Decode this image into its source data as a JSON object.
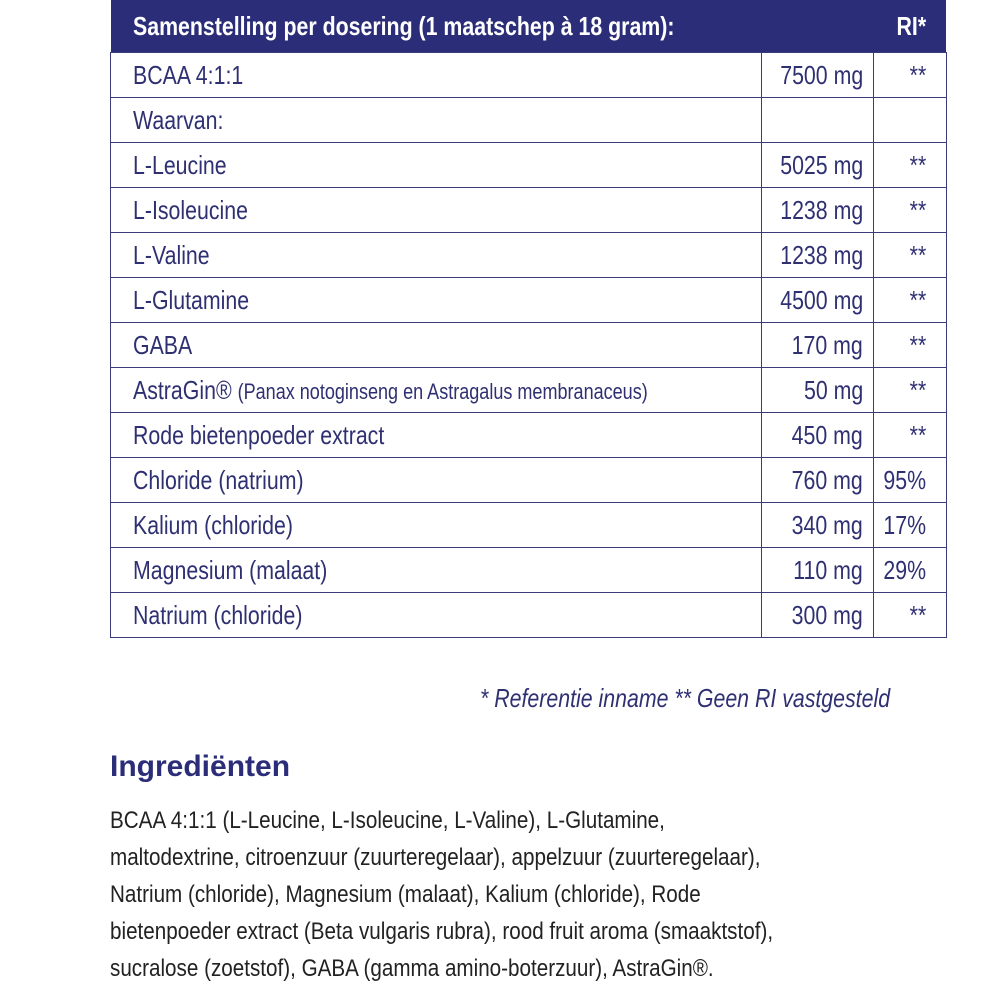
{
  "table": {
    "header": [
      "Samenstelling per dosering (1 maatschep à 18 gram):",
      "RI*"
    ],
    "rows": [
      {
        "name": "BCAA 4:1:1",
        "amount": "7500 mg",
        "ri": "**"
      },
      {
        "name": "Waarvan:",
        "amount": null,
        "ri": null,
        "level": 1
      },
      {
        "name": "L-Leucine",
        "amount": "5025 mg",
        "ri": "**",
        "level": 1
      },
      {
        "name": "L-Isoleucine",
        "amount": "1238 mg",
        "ri": "**",
        "level": 1
      },
      {
        "name": "L-Valine",
        "amount": "1238 mg",
        "ri": "**",
        "level": 1
      },
      {
        "name": "L-Glutamine",
        "amount": "4500 mg",
        "ri": "**"
      },
      {
        "name": "GABA",
        "amount": "170 mg",
        "ri": "**"
      },
      {
        "name": "AstraGin®",
        "note": "(Panax notoginseng en Astragalus membranaceus)",
        "amount": "50 mg",
        "ri": "**"
      },
      {
        "name": "Rode bietenpoeder extract",
        "amount": "450 mg",
        "ri": "**"
      },
      {
        "name": "Chloride (natrium)",
        "amount": "760 mg",
        "ri": "95%"
      },
      {
        "name": "Kalium (chloride)",
        "amount": "340 mg",
        "ri": "17%"
      },
      {
        "name": "Magnesium (malaat)",
        "amount": "110 mg",
        "ri": "29%"
      },
      {
        "name": "Natrium (chloride)",
        "amount": "300 mg",
        "ri": "**"
      }
    ],
    "footnote": "* Referentie inname  ** Geen RI vastgesteld"
  },
  "ingredients": {
    "title": "Ingrediënten",
    "lines": [
      "BCAA 4:1:1 (L-Leucine, L-Isoleucine, L-Valine),  L-Glutamine,",
      "maltodextrine, citroenzuur (zuurteregelaar), appelzuur (zuurteregelaar),",
      "Natrium (chloride), Magnesium (malaat), Kalium (chloride), Rode",
      "bietenpoeder extract (Beta vulgaris rubra), rood fruit aroma (smaaktstof),",
      "sucralose (zoetstof), GABA (gamma amino-boterzuur), AstraGin®."
    ]
  }
}
